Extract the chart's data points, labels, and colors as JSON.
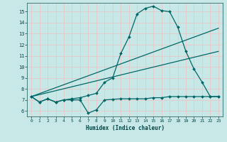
{
  "xlabel": "Humidex (Indice chaleur)",
  "bg_color": "#c8e8e8",
  "grid_color": "#e8c8c8",
  "line_color": "#006666",
  "xlim": [
    -0.5,
    23.5
  ],
  "ylim": [
    5.5,
    15.8
  ],
  "yticks": [
    6,
    7,
    8,
    9,
    10,
    11,
    12,
    13,
    14,
    15
  ],
  "xticks": [
    0,
    1,
    2,
    3,
    4,
    5,
    6,
    7,
    8,
    9,
    10,
    11,
    12,
    13,
    14,
    15,
    16,
    17,
    18,
    19,
    20,
    21,
    22,
    23
  ],
  "line1_x": [
    0,
    1,
    2,
    3,
    4,
    5,
    6,
    7,
    8,
    9,
    10,
    11,
    12,
    13,
    14,
    15,
    16,
    17,
    18,
    19,
    20,
    21,
    22,
    23
  ],
  "line1_y": [
    7.3,
    6.8,
    7.1,
    6.8,
    7.0,
    7.0,
    7.0,
    5.8,
    6.1,
    7.0,
    7.05,
    7.1,
    7.1,
    7.1,
    7.1,
    7.2,
    7.2,
    7.3,
    7.3,
    7.3,
    7.3,
    7.3,
    7.3,
    7.3
  ],
  "line2_x": [
    0,
    1,
    2,
    3,
    4,
    5,
    6,
    7,
    8,
    9,
    10,
    11,
    12,
    13,
    14,
    15,
    16,
    17,
    18,
    19,
    20,
    21,
    22,
    23
  ],
  "line2_y": [
    7.3,
    6.8,
    7.1,
    6.8,
    7.0,
    7.1,
    7.2,
    7.4,
    7.6,
    8.6,
    9.0,
    11.2,
    12.7,
    14.8,
    15.3,
    15.5,
    15.1,
    15.0,
    13.6,
    11.4,
    9.8,
    8.6,
    7.3,
    7.3
  ],
  "line3_x": [
    0,
    23
  ],
  "line3_y": [
    7.3,
    13.5
  ],
  "line4_x": [
    0,
    23
  ],
  "line4_y": [
    7.3,
    11.4
  ]
}
